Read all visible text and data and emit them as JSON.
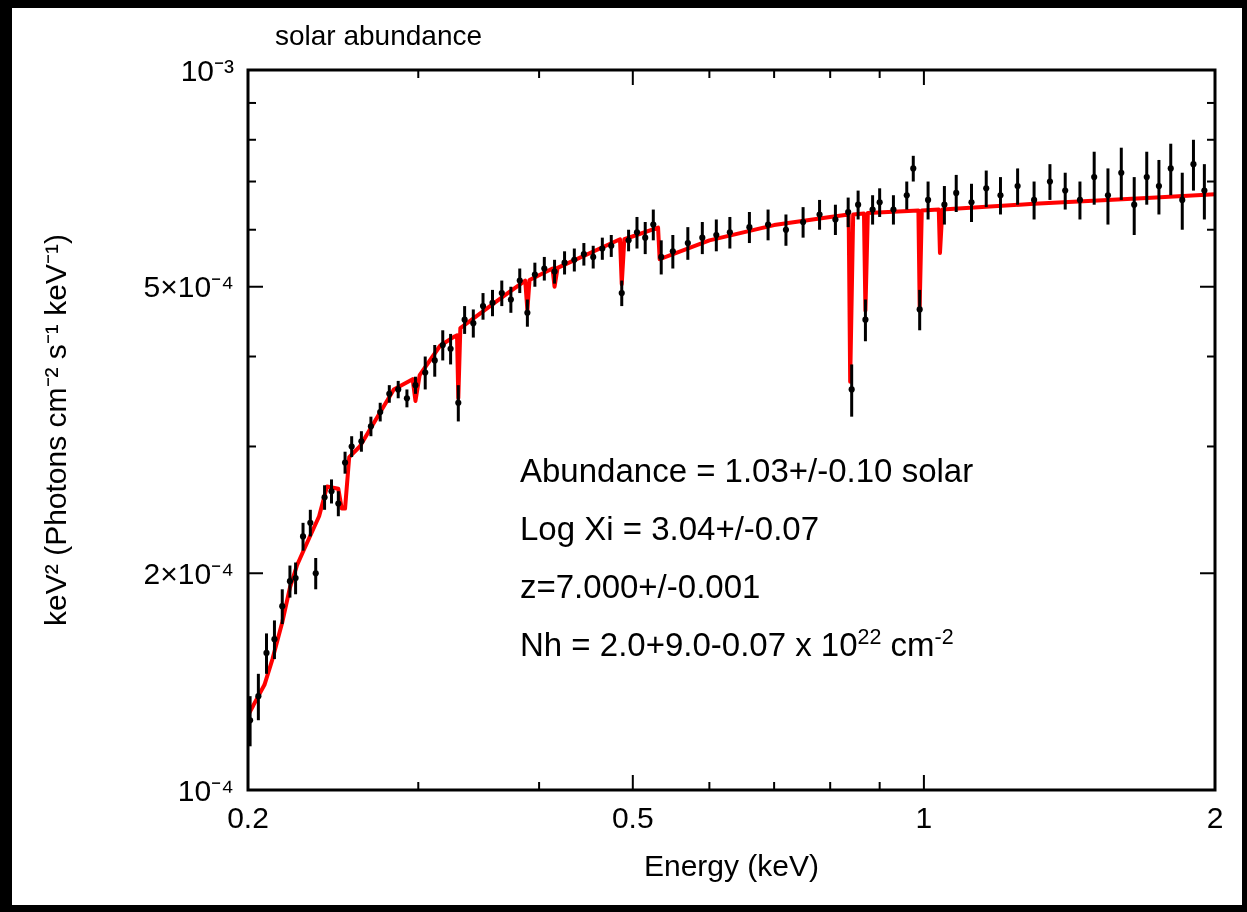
{
  "chart_data": {
    "type": "scatter",
    "title": "solar abundance",
    "xlabel": "Energy (keV)",
    "ylabel": "keV² (Photons cm⁻² s⁻¹ keV⁻¹)",
    "log": "xy",
    "xlim": [
      0.2,
      2
    ],
    "ylim": [
      0.0001,
      0.001
    ],
    "xticks": [
      0.2,
      {
        "value": 0.3,
        "label": null
      },
      {
        "value": 0.4,
        "label": null
      },
      0.5,
      {
        "value": 0.6,
        "label": null
      },
      {
        "value": 0.7,
        "label": null
      },
      {
        "value": 0.8,
        "label": null
      },
      {
        "value": 0.9,
        "label": null
      },
      1,
      2
    ],
    "yticks": [
      {
        "value": 0.0001,
        "label": "10⁻⁴"
      },
      {
        "value": 0.0002,
        "label": "2×10⁻⁴"
      },
      {
        "value": 0.0003,
        "label": null
      },
      {
        "value": 0.0004,
        "label": null
      },
      {
        "value": 0.0005,
        "label": "5×10⁻⁴"
      },
      {
        "value": 0.0006,
        "label": null
      },
      {
        "value": 0.0007,
        "label": null
      },
      {
        "value": 0.0008,
        "label": null
      },
      {
        "value": 0.0009,
        "label": null
      },
      {
        "value": 0.001,
        "label": "10⁻³"
      }
    ],
    "annotations": [
      "Abundance = 1.03+/-0.10  solar",
      "Log Xi = 3.04+/-0.07",
      "z=7.000+/-0.001",
      "Nh = 2.0+9.0-0.07 x 10$^{22}$ cm$^{-2}$"
    ],
    "series": [
      {
        "color": "#000000",
        "marker": "circle",
        "x": [
          0.201,
          0.205,
          0.209,
          0.213,
          0.217,
          0.221,
          0.224,
          0.228,
          0.232,
          0.235,
          0.24,
          0.244,
          0.248,
          0.252,
          0.256,
          0.262,
          0.268,
          0.274,
          0.28,
          0.286,
          0.292,
          0.298,
          0.305,
          0.312,
          0.318,
          0.324,
          0.33,
          0.335,
          0.342,
          0.35,
          0.358,
          0.366,
          0.374,
          0.382,
          0.389,
          0.396,
          0.405,
          0.415,
          0.425,
          0.435,
          0.445,
          0.455,
          0.465,
          0.475,
          0.487,
          0.495,
          0.505,
          0.515,
          0.525,
          0.535,
          0.55,
          0.57,
          0.59,
          0.61,
          0.63,
          0.66,
          0.69,
          0.72,
          0.75,
          0.78,
          0.81,
          0.835,
          0.842,
          0.855,
          0.87,
          0.885,
          0.9,
          0.93,
          0.96,
          0.975,
          0.99,
          1.01,
          1.05,
          1.08,
          1.12,
          1.16,
          1.2,
          1.25,
          1.3,
          1.35,
          1.4,
          1.45,
          1.5,
          1.55,
          1.6,
          1.65,
          1.7,
          1.75,
          1.8,
          1.85,
          1.9,
          1.95
        ],
        "values": [
          0.000125,
          0.000135,
          0.000155,
          0.000162,
          0.00018,
          0.000195,
          0.000197,
          0.000225,
          0.000235,
          0.0002,
          0.000255,
          0.00026,
          0.00025,
          0.000285,
          0.0003,
          0.000305,
          0.00032,
          0.000335,
          0.000355,
          0.00036,
          0.00035,
          0.000365,
          0.00038,
          0.000395,
          0.000415,
          0.00041,
          0.000345,
          0.00045,
          0.000445,
          0.00047,
          0.000475,
          0.00049,
          0.00048,
          0.00051,
          0.00046,
          0.00052,
          0.00053,
          0.000525,
          0.00054,
          0.000545,
          0.000555,
          0.00055,
          0.000565,
          0.00057,
          0.00049,
          0.00058,
          0.000595,
          0.000585,
          0.00061,
          0.00055,
          0.00056,
          0.000575,
          0.000585,
          0.00059,
          0.000595,
          0.000605,
          0.00061,
          0.0006,
          0.000615,
          0.00063,
          0.00062,
          0.000635,
          0.00036,
          0.00065,
          0.00045,
          0.00064,
          0.000655,
          0.00064,
          0.00067,
          0.00073,
          0.000465,
          0.00066,
          0.00065,
          0.000675,
          0.000655,
          0.000685,
          0.00067,
          0.00069,
          0.00066,
          0.0007,
          0.00068,
          0.00066,
          0.00071,
          0.00067,
          0.00072,
          0.00065,
          0.00071,
          0.00069,
          0.00073,
          0.00066,
          0.00074,
          0.00068
        ],
        "errors": [
          1e-05,
          1e-05,
          1e-05,
          1e-05,
          1e-05,
          1e-05,
          1e-05,
          1e-05,
          1e-05,
          1e-05,
          1e-05,
          1e-05,
          1e-05,
          1e-05,
          1e-05,
          1e-05,
          1e-05,
          1e-05,
          1e-05,
          1e-05,
          1e-05,
          1e-05,
          2e-05,
          2e-05,
          2e-05,
          2e-05,
          2e-05,
          2e-05,
          2e-05,
          2e-05,
          2e-05,
          2e-05,
          2e-05,
          2e-05,
          2e-05,
          2e-05,
          2e-05,
          2e-05,
          2e-05,
          2e-05,
          2e-05,
          2e-05,
          2e-05,
          2e-05,
          2e-05,
          2e-05,
          3e-05,
          3e-05,
          3e-05,
          3e-05,
          3e-05,
          3e-05,
          3e-05,
          3e-05,
          3e-05,
          3e-05,
          3e-05,
          3e-05,
          3e-05,
          3e-05,
          3e-05,
          3e-05,
          3e-05,
          3e-05,
          3e-05,
          3e-05,
          3e-05,
          3e-05,
          3e-05,
          3e-05,
          3e-05,
          4e-05,
          4e-05,
          4e-05,
          4e-05,
          4e-05,
          4e-05,
          4e-05,
          4e-05,
          4e-05,
          4e-05,
          4e-05,
          6e-05,
          6e-05,
          6e-05,
          6e-05,
          6e-05,
          6e-05,
          6e-05,
          6e-05,
          6e-05,
          6e-05
        ]
      },
      {
        "type": "line",
        "color": "#ff0000",
        "x": [
          0.2,
          0.208,
          0.212,
          0.217,
          0.221,
          0.2247,
          0.2286,
          0.2369,
          0.2414,
          0.248,
          0.25,
          0.252,
          0.2545,
          0.261,
          0.283,
          0.296,
          0.298,
          0.301,
          0.316,
          0.3265,
          0.329,
          0.33,
          0.3316,
          0.362,
          0.387,
          0.389,
          0.391,
          0.413,
          0.415,
          0.418,
          0.485,
          0.487,
          0.49,
          0.531,
          0.533,
          0.6,
          0.7,
          0.8,
          0.836,
          0.839,
          0.845,
          0.867,
          0.87,
          0.875,
          0.987,
          0.99,
          0.995,
          1.036,
          1.039,
          1.045,
          1.3,
          1.7,
          2
        ],
        "values": [
          0.000127,
          0.00014,
          0.000152,
          0.000171,
          0.000191,
          0.000205,
          0.000216,
          0.00024,
          0.000264,
          0.000262,
          0.000246,
          0.000246,
          0.00029,
          0.0003,
          0.00036,
          0.000372,
          0.000347,
          0.000377,
          0.000414,
          0.000426,
          0.000428,
          0.00035,
          0.000438,
          0.000478,
          0.00051,
          0.000464,
          0.000511,
          0.00053,
          0.0005,
          0.000531,
          0.000582,
          0.000504,
          0.000582,
          0.000604,
          0.000546,
          0.00058,
          0.000609,
          0.000625,
          0.00063,
          0.000369,
          0.00063,
          0.000632,
          0.000463,
          0.000633,
          0.000638,
          0.000469,
          0.000638,
          0.00064,
          0.000557,
          0.00064,
          0.000652,
          0.000664,
          0.000672
        ]
      }
    ]
  }
}
